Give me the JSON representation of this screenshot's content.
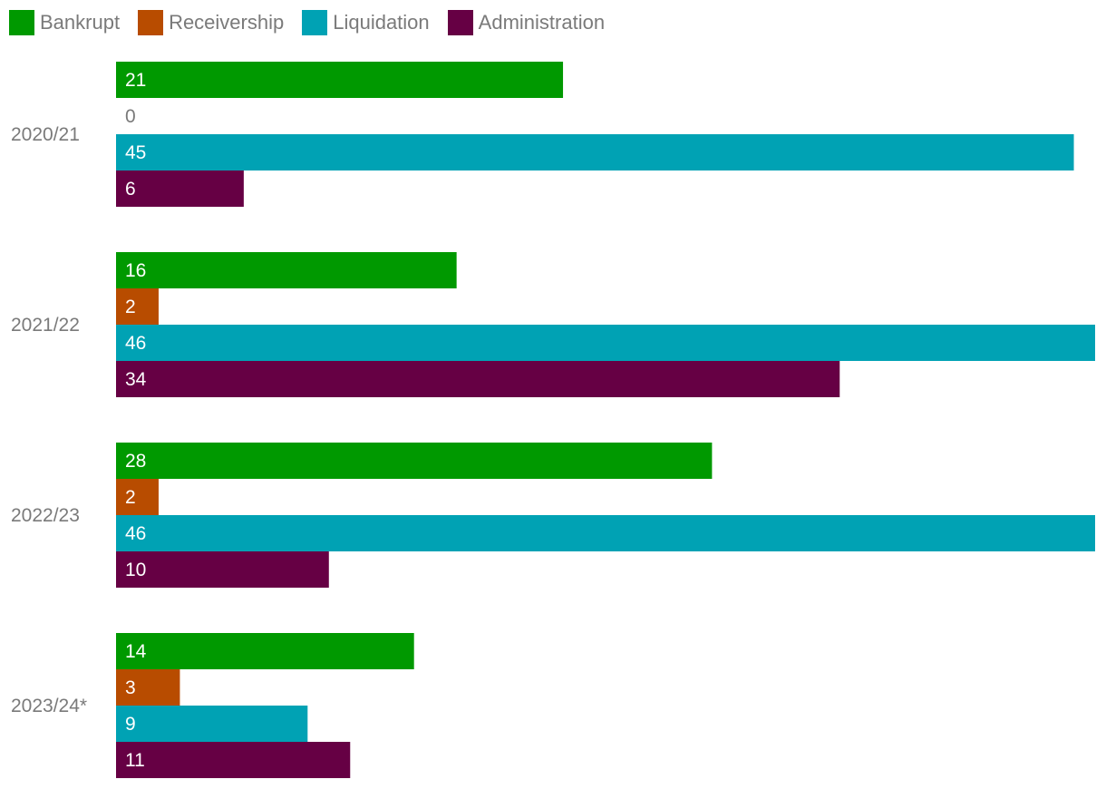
{
  "chart_data": {
    "type": "bar",
    "orientation": "horizontal",
    "categories": [
      "2020/21",
      "2021/22",
      "2022/23",
      "2023/24*"
    ],
    "series": [
      {
        "name": "Bankrupt",
        "color": "#009900",
        "values": [
          21,
          16,
          28,
          14
        ]
      },
      {
        "name": "Receivership",
        "color": "#b84c00",
        "values": [
          0,
          2,
          2,
          3
        ]
      },
      {
        "name": "Liquidation",
        "color": "#00a2b4",
        "values": [
          45,
          46,
          46,
          9
        ]
      },
      {
        "name": "Administration",
        "color": "#660044",
        "values": [
          6,
          34,
          10,
          11
        ]
      }
    ],
    "xlim": [
      0,
      46
    ],
    "legend_position": "top-left",
    "grid": false,
    "data_labels": true,
    "label_color_inside": "#ffffff",
    "label_color_zero": "#7a7a7a"
  }
}
